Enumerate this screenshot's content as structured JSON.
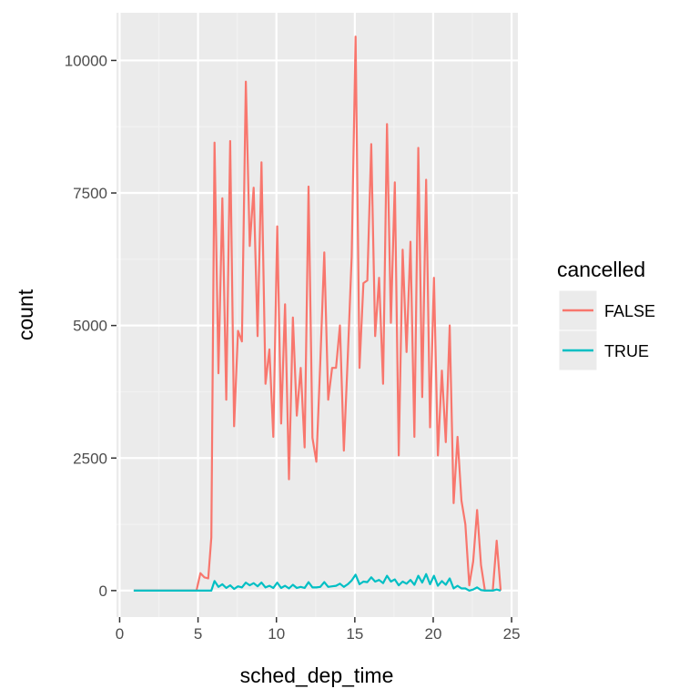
{
  "chart_data": {
    "type": "line",
    "xlabel": "sched_dep_time",
    "ylabel": "count",
    "xlim": [
      -0.2,
      25.4
    ],
    "ylim": [
      -500,
      10900
    ],
    "x_ticks": [
      0,
      5,
      10,
      15,
      20,
      25
    ],
    "y_ticks": [
      0,
      2500,
      5000,
      7500,
      10000
    ],
    "x_tick_labels": [
      "0",
      "5",
      "10",
      "15",
      "20",
      "25"
    ],
    "y_tick_labels": [
      "0",
      "2500",
      "5000",
      "7500",
      "10000"
    ],
    "grid": true,
    "panel_background": "#ebebeb",
    "legend": {
      "title": "cancelled",
      "position": "right"
    },
    "series": [
      {
        "name": "FALSE",
        "color": "#f8766d",
        "points": [
          [
            0.9,
            0
          ],
          [
            1.5,
            0
          ],
          [
            2,
            0
          ],
          [
            2.5,
            0
          ],
          [
            3,
            0
          ],
          [
            3.5,
            0
          ],
          [
            4,
            0
          ],
          [
            4.5,
            0
          ],
          [
            4.9,
            0
          ],
          [
            5.15,
            330
          ],
          [
            5.4,
            250
          ],
          [
            5.65,
            230
          ],
          [
            5.85,
            1000
          ],
          [
            6.05,
            8450
          ],
          [
            6.3,
            4100
          ],
          [
            6.55,
            7400
          ],
          [
            6.8,
            3600
          ],
          [
            7.05,
            8480
          ],
          [
            7.3,
            3100
          ],
          [
            7.55,
            4900
          ],
          [
            7.8,
            4700
          ],
          [
            8.05,
            9600
          ],
          [
            8.3,
            6500
          ],
          [
            8.55,
            7600
          ],
          [
            8.8,
            4800
          ],
          [
            9.05,
            8080
          ],
          [
            9.3,
            3900
          ],
          [
            9.55,
            4550
          ],
          [
            9.8,
            2900
          ],
          [
            10.05,
            6870
          ],
          [
            10.3,
            3150
          ],
          [
            10.55,
            5400
          ],
          [
            10.8,
            2100
          ],
          [
            11.05,
            5150
          ],
          [
            11.3,
            3300
          ],
          [
            11.55,
            4200
          ],
          [
            11.8,
            2700
          ],
          [
            12.05,
            7620
          ],
          [
            12.3,
            2880
          ],
          [
            12.55,
            2430
          ],
          [
            12.8,
            4300
          ],
          [
            13.05,
            6380
          ],
          [
            13.3,
            3600
          ],
          [
            13.55,
            4200
          ],
          [
            13.8,
            4200
          ],
          [
            14.05,
            5000
          ],
          [
            14.3,
            2640
          ],
          [
            14.55,
            4400
          ],
          [
            14.8,
            6300
          ],
          [
            15.05,
            10450
          ],
          [
            15.3,
            4200
          ],
          [
            15.55,
            5800
          ],
          [
            15.8,
            5850
          ],
          [
            16.05,
            8420
          ],
          [
            16.3,
            4800
          ],
          [
            16.55,
            5900
          ],
          [
            16.8,
            3900
          ],
          [
            17.05,
            8800
          ],
          [
            17.3,
            5050
          ],
          [
            17.55,
            7700
          ],
          [
            17.8,
            2550
          ],
          [
            18.05,
            6430
          ],
          [
            18.3,
            4500
          ],
          [
            18.55,
            6580
          ],
          [
            18.8,
            2900
          ],
          [
            19.05,
            8350
          ],
          [
            19.3,
            3650
          ],
          [
            19.55,
            7750
          ],
          [
            19.8,
            3080
          ],
          [
            20.05,
            5900
          ],
          [
            20.3,
            2550
          ],
          [
            20.55,
            4150
          ],
          [
            20.8,
            2800
          ],
          [
            21.05,
            5000
          ],
          [
            21.3,
            1650
          ],
          [
            21.55,
            2900
          ],
          [
            21.8,
            1700
          ],
          [
            22.05,
            1250
          ],
          [
            22.3,
            100
          ],
          [
            22.55,
            550
          ],
          [
            22.8,
            1520
          ],
          [
            23.05,
            480
          ],
          [
            23.3,
            0
          ],
          [
            23.55,
            0
          ],
          [
            23.8,
            0
          ],
          [
            24.05,
            940
          ],
          [
            24.3,
            0
          ]
        ]
      },
      {
        "name": "TRUE",
        "color": "#00bfc4",
        "points": [
          [
            0.9,
            0
          ],
          [
            1.5,
            0
          ],
          [
            2,
            0
          ],
          [
            2.5,
            0
          ],
          [
            3,
            0
          ],
          [
            3.5,
            0
          ],
          [
            4,
            0
          ],
          [
            4.5,
            0
          ],
          [
            4.9,
            0
          ],
          [
            5.15,
            0
          ],
          [
            5.4,
            0
          ],
          [
            5.65,
            0
          ],
          [
            5.85,
            0
          ],
          [
            6.05,
            180
          ],
          [
            6.3,
            70
          ],
          [
            6.55,
            120
          ],
          [
            6.8,
            50
          ],
          [
            7.05,
            100
          ],
          [
            7.3,
            30
          ],
          [
            7.55,
            80
          ],
          [
            7.8,
            60
          ],
          [
            8.05,
            150
          ],
          [
            8.3,
            100
          ],
          [
            8.55,
            140
          ],
          [
            8.8,
            80
          ],
          [
            9.05,
            150
          ],
          [
            9.3,
            60
          ],
          [
            9.55,
            90
          ],
          [
            9.8,
            50
          ],
          [
            10.05,
            150
          ],
          [
            10.3,
            50
          ],
          [
            10.55,
            90
          ],
          [
            10.8,
            40
          ],
          [
            11.05,
            110
          ],
          [
            11.3,
            50
          ],
          [
            11.55,
            70
          ],
          [
            11.8,
            50
          ],
          [
            12.05,
            160
          ],
          [
            12.3,
            60
          ],
          [
            12.55,
            60
          ],
          [
            12.8,
            70
          ],
          [
            13.05,
            160
          ],
          [
            13.3,
            70
          ],
          [
            13.55,
            80
          ],
          [
            13.8,
            90
          ],
          [
            14.05,
            130
          ],
          [
            14.3,
            70
          ],
          [
            14.55,
            120
          ],
          [
            14.8,
            190
          ],
          [
            15.05,
            300
          ],
          [
            15.3,
            120
          ],
          [
            15.55,
            170
          ],
          [
            15.8,
            160
          ],
          [
            16.05,
            250
          ],
          [
            16.3,
            170
          ],
          [
            16.55,
            200
          ],
          [
            16.8,
            140
          ],
          [
            17.05,
            280
          ],
          [
            17.3,
            170
          ],
          [
            17.55,
            210
          ],
          [
            17.8,
            100
          ],
          [
            18.05,
            170
          ],
          [
            18.3,
            130
          ],
          [
            18.55,
            200
          ],
          [
            18.8,
            110
          ],
          [
            19.05,
            280
          ],
          [
            19.3,
            150
          ],
          [
            19.55,
            310
          ],
          [
            19.8,
            120
          ],
          [
            20.05,
            280
          ],
          [
            20.3,
            90
          ],
          [
            20.55,
            180
          ],
          [
            20.8,
            110
          ],
          [
            21.05,
            230
          ],
          [
            21.3,
            40
          ],
          [
            21.55,
            90
          ],
          [
            21.8,
            40
          ],
          [
            22.05,
            40
          ],
          [
            22.3,
            0
          ],
          [
            22.55,
            20
          ],
          [
            22.8,
            60
          ],
          [
            23.05,
            10
          ],
          [
            23.3,
            0
          ],
          [
            23.55,
            0
          ],
          [
            23.8,
            0
          ],
          [
            24.05,
            20
          ],
          [
            24.3,
            0
          ]
        ]
      }
    ]
  }
}
